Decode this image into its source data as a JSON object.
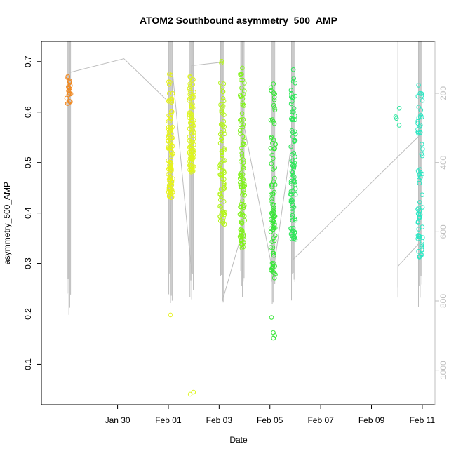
{
  "chart_data": {
    "type": "scatter",
    "title": "ATOM2 Southbound asymmetry_500_AMP",
    "xlabel": "Date",
    "ylabel": "asymmetry_500_AMP",
    "xlim": [
      "2019-01-27T00:00",
      "2019-02-11T12:00"
    ],
    "ylim": [
      0.02,
      0.74
    ],
    "y2lim": [
      50,
      1100
    ],
    "x_ticks": [
      {
        "date": "2019-01-30",
        "label": "Jan 30"
      },
      {
        "date": "2019-02-01",
        "label": "Feb 01"
      },
      {
        "date": "2019-02-03",
        "label": "Feb 03"
      },
      {
        "date": "2019-02-05",
        "label": "Feb 05"
      },
      {
        "date": "2019-02-07",
        "label": "Feb 07"
      },
      {
        "date": "2019-02-09",
        "label": "Feb 09"
      },
      {
        "date": "2019-02-11",
        "label": "Feb 11"
      }
    ],
    "y_ticks": [
      0.1,
      0.2,
      0.3,
      0.4,
      0.5,
      0.6,
      0.7
    ],
    "y2_ticks": [
      200,
      400,
      600,
      800,
      1000
    ],
    "secondary_axis_color": "#bfbfbf",
    "depth_color": "#bdbdbd",
    "profiles": [
      {
        "date": "2019-01-28T02:00",
        "color": "#f08a24",
        "ymin": 0.615,
        "ymax": 0.672,
        "n": 22,
        "low": []
      },
      {
        "date": "2019-02-01T02:00",
        "color": "#e6f21a",
        "ymin": 0.43,
        "ymax": 0.682,
        "n": 110,
        "low": [
          0.198
        ]
      },
      {
        "date": "2019-02-01T22:00",
        "color": "#ddf51e",
        "ymin": 0.48,
        "ymax": 0.68,
        "n": 90,
        "low": [
          0.045,
          0.041
        ]
      },
      {
        "date": "2019-02-03T03:00",
        "color": "#b4f51a",
        "ymin": 0.375,
        "ymax": 0.71,
        "n": 80,
        "low": []
      },
      {
        "date": "2019-02-03T22:00",
        "color": "#80f21a",
        "ymin": 0.325,
        "ymax": 0.692,
        "n": 100,
        "low": []
      },
      {
        "date": "2019-02-05T03:00",
        "color": "#3ae63a",
        "ymin": 0.27,
        "ymax": 0.67,
        "n": 90,
        "low": [
          0.193,
          0.163,
          0.157,
          0.152
        ]
      },
      {
        "date": "2019-02-05T22:00",
        "color": "#2ee65a",
        "ymin": 0.34,
        "ymax": 0.69,
        "n": 90,
        "low": []
      },
      {
        "date": "2019-02-10T01:00",
        "color": "#2ee6a0",
        "ymin": 0.54,
        "ymax": 0.66,
        "n": 4,
        "low": []
      },
      {
        "date": "2019-02-10T22:00",
        "color": "#2ee6c3",
        "ymin": 0.31,
        "ymax": 0.672,
        "n": 70,
        "low": []
      }
    ],
    "depth_trace": [
      {
        "date": "2019-01-28T02:00",
        "depth": 150
      },
      {
        "date": "2019-01-28T02:00",
        "depth": 840
      },
      {
        "date": "2019-01-28T02:30",
        "depth": 140
      },
      {
        "date": "2019-01-30T06:00",
        "depth": 100
      },
      {
        "date": "2019-02-01T02:00",
        "depth": 230
      },
      {
        "date": "2019-02-01T02:00",
        "depth": 740
      },
      {
        "date": "2019-02-01T04:00",
        "depth": 140
      },
      {
        "date": "2019-02-01T22:00",
        "depth": 720
      },
      {
        "date": "2019-02-01T22:00",
        "depth": 120
      },
      {
        "date": "2019-02-03T03:00",
        "depth": 110
      },
      {
        "date": "2019-02-03T03:00",
        "depth": 800
      },
      {
        "date": "2019-02-03T22:00",
        "depth": 600
      },
      {
        "date": "2019-02-03T22:00",
        "depth": 270
      },
      {
        "date": "2019-02-05T03:00",
        "depth": 720
      },
      {
        "date": "2019-02-05T22:00",
        "depth": 310
      },
      {
        "date": "2019-02-05T22:00",
        "depth": 680
      },
      {
        "date": "2019-02-10T22:00",
        "depth": 320
      },
      {
        "date": "2019-02-10T22:00",
        "depth": 630
      },
      {
        "date": "2019-02-10T01:00",
        "depth": 700
      },
      {
        "date": "2019-02-10T01:00",
        "depth": 790
      }
    ]
  }
}
